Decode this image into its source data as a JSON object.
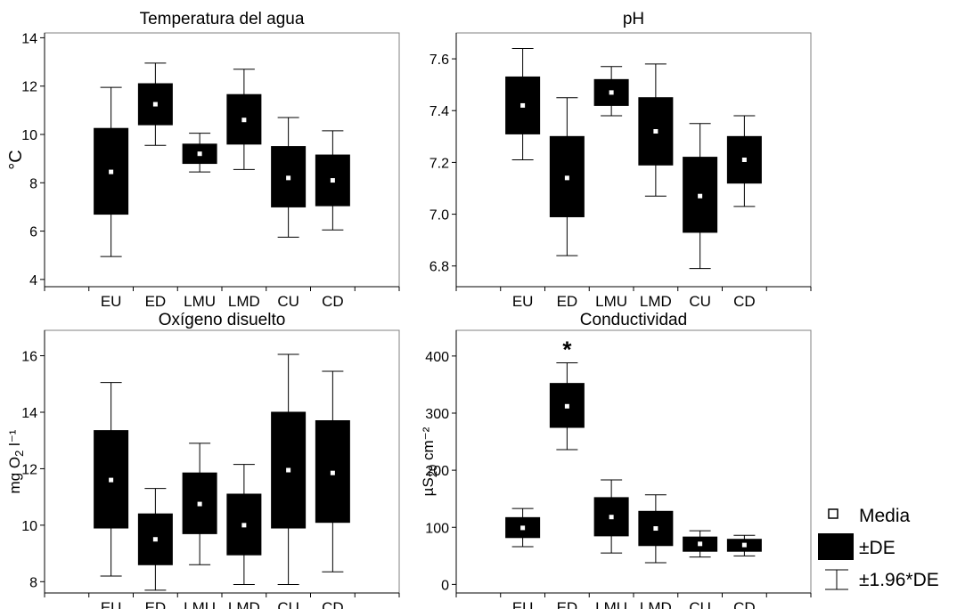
{
  "chart_data": [
    {
      "type": "box",
      "title": "Temperatura del agua",
      "ylabel_main": "°C",
      "ylabel_sub": "",
      "ylabel_tail": "",
      "ylim": [
        3.7,
        14.2
      ],
      "yticks": [
        4,
        6,
        8,
        10,
        12,
        14
      ],
      "ytick_decimals": 0,
      "categories": [
        "EU",
        "ED",
        "LMU",
        "LMD",
        "CU",
        "CD"
      ],
      "mean": [
        8.45,
        11.25,
        9.2,
        10.6,
        8.2,
        8.1
      ],
      "sd_low": [
        6.7,
        10.4,
        8.8,
        9.6,
        7.0,
        7.05
      ],
      "sd_high": [
        10.25,
        12.1,
        9.6,
        11.65,
        9.5,
        9.15
      ],
      "ci_low": [
        4.95,
        9.55,
        8.45,
        8.55,
        5.75,
        6.05
      ],
      "ci_high": [
        11.95,
        12.95,
        10.05,
        12.7,
        10.7,
        10.15
      ],
      "annotations": []
    },
    {
      "type": "box",
      "title": "pH",
      "ylabel_main": "",
      "ylabel_sub": "",
      "ylabel_tail": "",
      "ylim": [
        6.72,
        7.7
      ],
      "yticks": [
        6.8,
        7.0,
        7.2,
        7.4,
        7.6
      ],
      "ytick_decimals": 1,
      "categories": [
        "EU",
        "ED",
        "LMU",
        "LMD",
        "CU",
        "CD"
      ],
      "mean": [
        7.42,
        7.14,
        7.47,
        7.32,
        7.07,
        7.21
      ],
      "sd_low": [
        7.31,
        6.99,
        7.42,
        7.19,
        6.93,
        7.12
      ],
      "sd_high": [
        7.53,
        7.3,
        7.52,
        7.45,
        7.22,
        7.3
      ],
      "ci_low": [
        7.21,
        6.84,
        7.38,
        7.07,
        6.79,
        7.03
      ],
      "ci_high": [
        7.64,
        7.45,
        7.57,
        7.58,
        7.35,
        7.38
      ],
      "annotations": []
    },
    {
      "type": "box",
      "title": "Oxígeno disuelto",
      "ylabel_main": "mg O",
      "ylabel_sub": "2",
      "ylabel_tail": " l⁻¹",
      "ylim": [
        7.6,
        16.9
      ],
      "yticks": [
        8,
        10,
        12,
        14,
        16
      ],
      "ytick_decimals": 0,
      "categories": [
        "EU",
        "ED",
        "LMU",
        "LMD",
        "CU",
        "CD"
      ],
      "mean": [
        11.6,
        9.5,
        10.75,
        10.0,
        11.95,
        11.85
      ],
      "sd_low": [
        9.9,
        8.6,
        9.7,
        8.95,
        9.9,
        10.1
      ],
      "sd_high": [
        13.35,
        10.4,
        11.85,
        11.1,
        14.0,
        13.7
      ],
      "ci_low": [
        8.2,
        7.7,
        8.6,
        7.9,
        7.9,
        8.35
      ],
      "ci_high": [
        15.05,
        11.3,
        12.9,
        12.15,
        16.05,
        15.45
      ],
      "annotations": []
    },
    {
      "type": "box",
      "title": "Conductividad",
      "ylabel_main": "µS",
      "ylabel_sub": "20",
      "ylabel_tail": " cm⁻²",
      "ylim": [
        -15,
        445
      ],
      "yticks": [
        0,
        100,
        200,
        300,
        400
      ],
      "ytick_decimals": 0,
      "categories": [
        "EU",
        "ED",
        "LMU",
        "LMD",
        "CU",
        "CD"
      ],
      "mean": [
        99,
        312,
        118,
        98,
        71,
        69
      ],
      "sd_low": [
        82,
        275,
        85,
        68,
        58,
        58
      ],
      "sd_high": [
        117,
        352,
        152,
        128,
        83,
        79
      ],
      "ci_low": [
        66,
        236,
        55,
        38,
        48,
        50
      ],
      "ci_high": [
        133,
        388,
        183,
        157,
        94,
        86
      ],
      "annotations": [
        {
          "category": "ED",
          "text": "*"
        }
      ]
    }
  ],
  "legend": {
    "items": [
      {
        "symbol": "mean-marker",
        "label": "Media"
      },
      {
        "symbol": "sd-box",
        "label": "±DE"
      },
      {
        "symbol": "ci-whisker",
        "label": "±1.96*DE"
      }
    ]
  }
}
